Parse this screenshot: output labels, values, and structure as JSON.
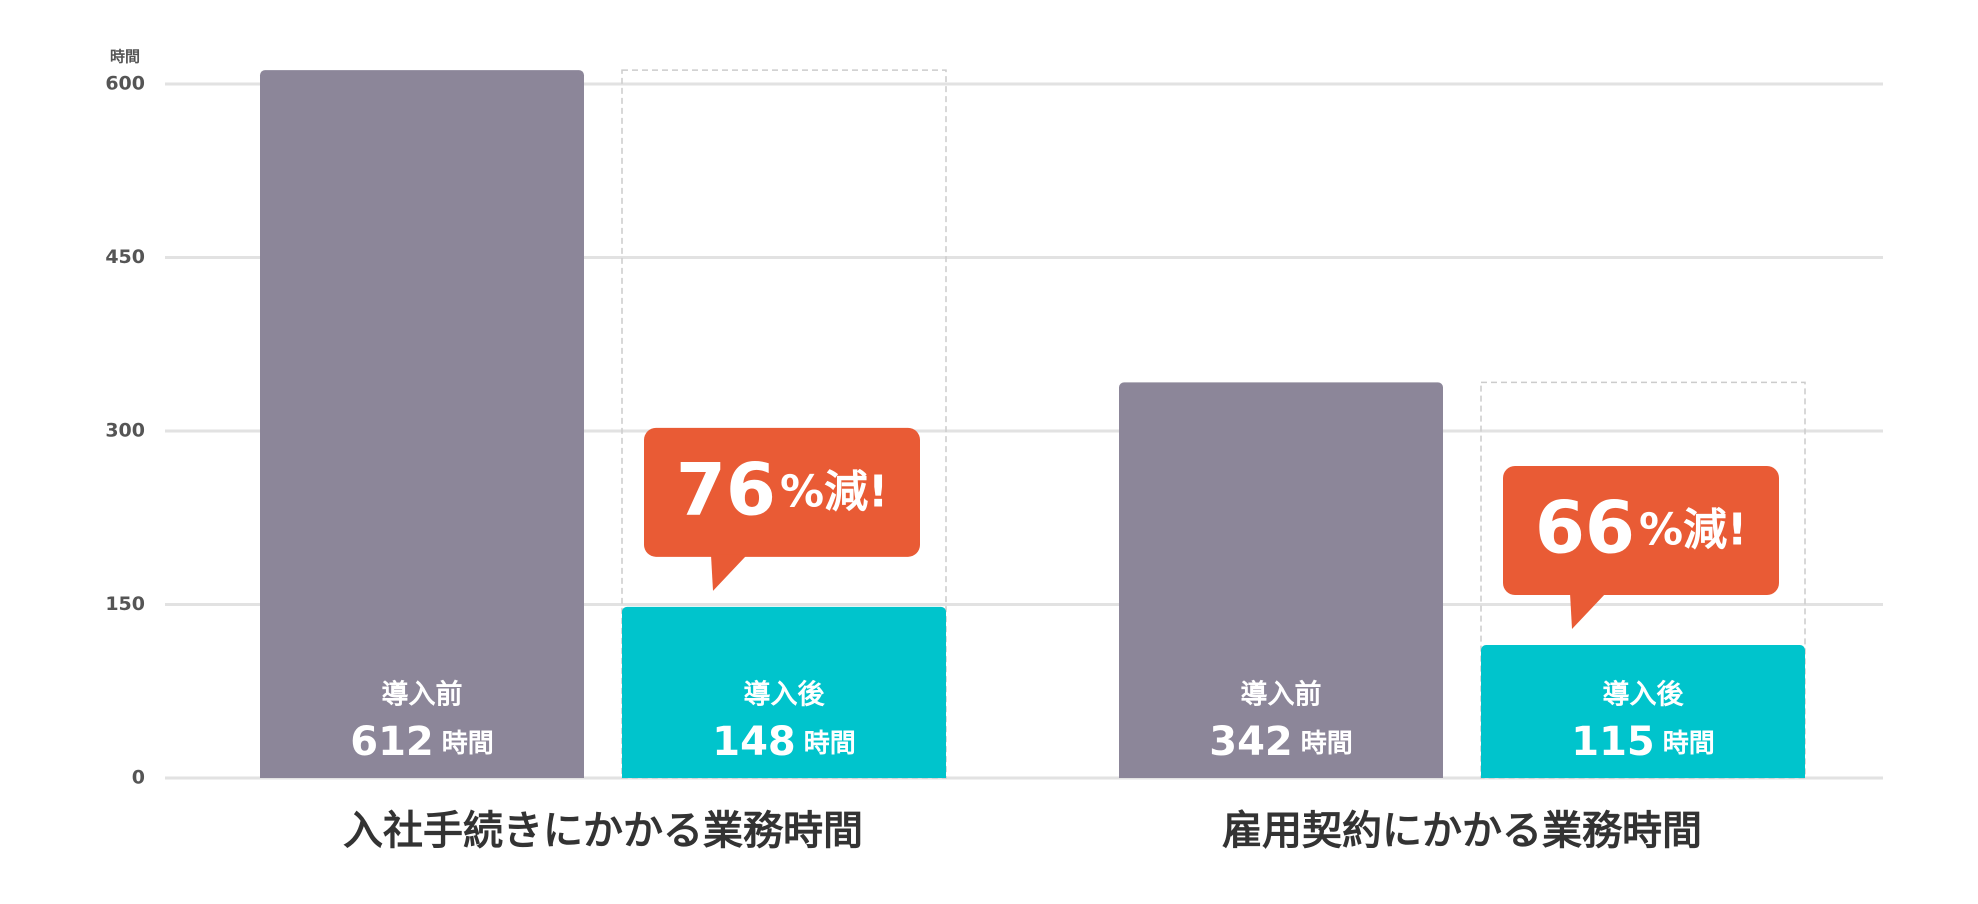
{
  "chart_data": {
    "type": "bar",
    "categories": [
      "入社手続きにかかる業務時間",
      "雇用契約にかかる業務時間"
    ],
    "unit": "時間",
    "series": [
      {
        "name": "導入前",
        "color": "#8c8699",
        "values": [
          612,
          342
        ]
      },
      {
        "name": "導入後",
        "color": "#00c4cc",
        "values": [
          148,
          115
        ]
      }
    ],
    "reductions": [
      {
        "value": 76,
        "label": "%減!"
      },
      {
        "value": 66,
        "label": "%減!"
      }
    ],
    "reduction_color": "#e95b35",
    "ylim": [
      0,
      600
    ],
    "yticks": [
      0,
      150,
      300,
      450,
      600
    ],
    "grid": true
  }
}
